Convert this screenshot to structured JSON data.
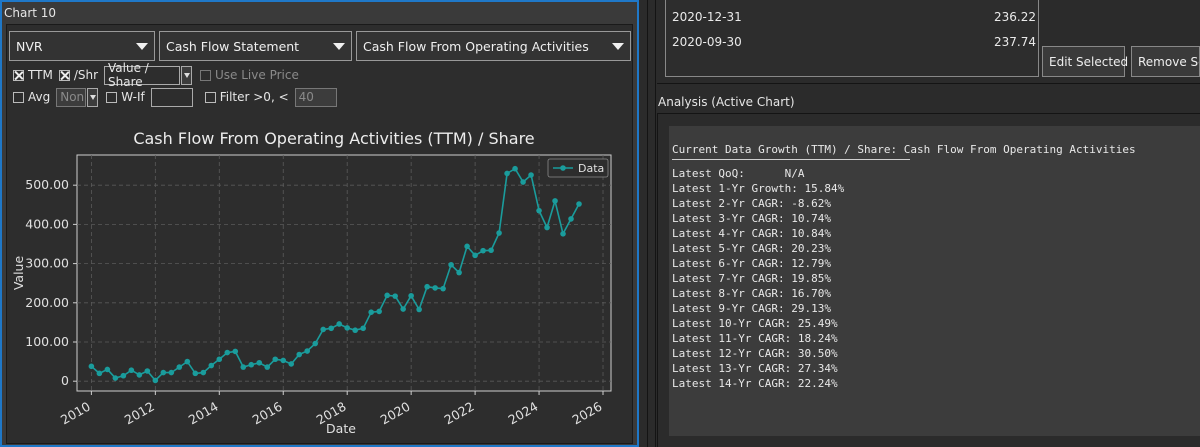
{
  "chart_panel": {
    "title": "Chart 10",
    "ticker": "NVR",
    "statement": "Cash Flow Statement",
    "metric": "Cash Flow From Operating Activities",
    "ttm_label": "TTM",
    "per_share_label": "/Shr",
    "per_share_mode": "Value / Share",
    "live_price_label": "Use Live Price",
    "avg_label": "Avg",
    "avg_mode": "Non",
    "wif_label": "W-If",
    "wif_value": "",
    "filter_label": "Filter >0, <",
    "filter_value": "40"
  },
  "chart_data": {
    "type": "line",
    "title": "Cash Flow From Operating Activities (TTM) / Share",
    "xlabel": "Date",
    "ylabel": "Value",
    "legend": "Data",
    "legend_placement": "top-right",
    "grid": true,
    "xlim": [
      2009.55,
      2026.25
    ],
    "ylim": [
      -25,
      577
    ],
    "x_ticks": [
      "2010",
      "2012",
      "2014",
      "2016",
      "2018",
      "2020",
      "2022",
      "2024",
      "2026"
    ],
    "y_ticks": [
      "0",
      "100.00",
      "200.00",
      "300.00",
      "400.00",
      "500.00"
    ],
    "color": "#1a9c9c",
    "x": [
      2010.0,
      2010.25,
      2010.5,
      2010.75,
      2011.0,
      2011.25,
      2011.5,
      2011.75,
      2012.0,
      2012.25,
      2012.5,
      2012.75,
      2013.0,
      2013.25,
      2013.5,
      2013.75,
      2014.0,
      2014.25,
      2014.5,
      2014.75,
      2015.0,
      2015.25,
      2015.5,
      2015.75,
      2016.0,
      2016.25,
      2016.5,
      2016.75,
      2017.0,
      2017.25,
      2017.5,
      2017.75,
      2018.0,
      2018.25,
      2018.5,
      2018.75,
      2019.0,
      2019.25,
      2019.5,
      2019.75,
      2020.0,
      2020.25,
      2020.5,
      2020.75,
      2021.0,
      2021.25,
      2021.5,
      2021.75,
      2022.0,
      2022.25,
      2022.5,
      2022.75,
      2023.0,
      2023.25,
      2023.5,
      2023.75,
      2024.0,
      2024.25,
      2024.5,
      2024.75,
      2025.0,
      2025.25
    ],
    "y": [
      38,
      20,
      30,
      8,
      14,
      28,
      16,
      26,
      2,
      22,
      22,
      36,
      50,
      20,
      22,
      40,
      56,
      73,
      76,
      36,
      42,
      47,
      36,
      56,
      53,
      44,
      68,
      77,
      96,
      132,
      135,
      146,
      136,
      130,
      135,
      176,
      178,
      219,
      217,
      184,
      218,
      183,
      241,
      238,
      236,
      297,
      277,
      344,
      321,
      333,
      334,
      378,
      530,
      542,
      508,
      526,
      435,
      392,
      460,
      376,
      414,
      452
    ]
  },
  "toolbar": {
    "icons": [
      "home-icon",
      "back-icon",
      "forward-icon",
      "pan-icon",
      "zoom-icon",
      "configure-icon",
      "save-icon"
    ],
    "glyphs": [
      "⌂",
      "▨",
      "▨",
      "✥",
      "⬚",
      "⚟",
      "💾"
    ]
  },
  "table": {
    "rows": [
      {
        "date": "2020-12-31",
        "value": "236.22"
      },
      {
        "date": "2020-09-30",
        "value": "237.74"
      }
    ]
  },
  "buttons": {
    "edit_selected": "Edit Selected",
    "remove_selected": "Remove Sele"
  },
  "analysis": {
    "label": "Analysis (Active Chart)",
    "header": "Current Data Growth (TTM) / Share: Cash Flow From Operating Activities",
    "lines": [
      "Latest QoQ:      N/A",
      "Latest 1-Yr Growth: 15.84%",
      "Latest 2-Yr CAGR: -8.62%",
      "Latest 3-Yr CAGR: 10.74%",
      "Latest 4-Yr CAGR: 10.84%",
      "Latest 5-Yr CAGR: 20.23%",
      "Latest 6-Yr CAGR: 12.79%",
      "Latest 7-Yr CAGR: 19.85%",
      "Latest 8-Yr CAGR: 16.70%",
      "Latest 9-Yr CAGR: 29.13%",
      "Latest 10-Yr CAGR: 25.49%",
      "Latest 11-Yr CAGR: 18.24%",
      "Latest 12-Yr CAGR: 30.50%",
      "Latest 13-Yr CAGR: 27.34%",
      "Latest 14-Yr CAGR: 22.24%"
    ]
  }
}
